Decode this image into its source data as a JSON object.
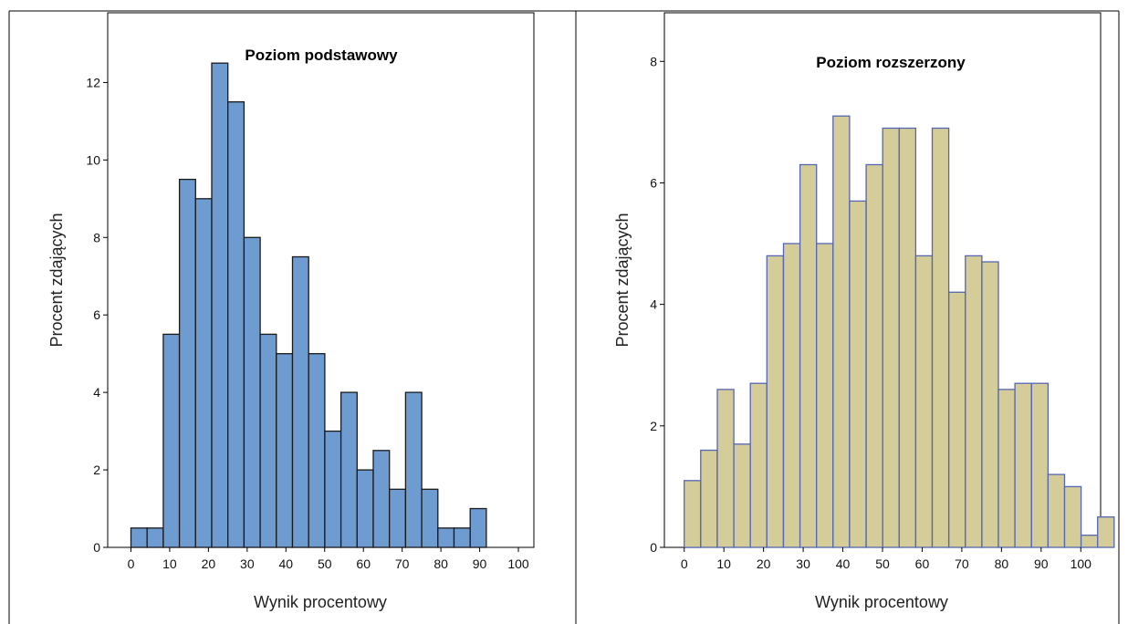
{
  "chart_data": [
    {
      "type": "bar",
      "title": "Poziom podstawowy",
      "xlabel": "Wynik procentowy",
      "ylabel": "Procent zdających",
      "bin_width": 4.17,
      "x_start": 0,
      "xlim": [
        -6,
        104
      ],
      "ylim": [
        0,
        13.8
      ],
      "xticks": [
        0,
        10,
        20,
        30,
        40,
        50,
        60,
        70,
        80,
        90,
        100
      ],
      "yticks": [
        0,
        2,
        4,
        6,
        8,
        10,
        12
      ],
      "values": [
        0.5,
        0.5,
        5.5,
        9.5,
        9.0,
        12.5,
        11.5,
        8.0,
        5.5,
        5.0,
        7.5,
        5.0,
        3.0,
        4.0,
        2.0,
        2.5,
        1.5,
        4.0,
        1.5,
        0.5,
        0.5,
        1.0
      ],
      "colors": {
        "fill": "#6e9bd0",
        "stroke": "#1a1a1a"
      },
      "grid": false,
      "legend": "none"
    },
    {
      "type": "bar",
      "title": "Poziom rozszerzony",
      "xlabel": "Wynik procentowy",
      "ylabel": "Procent zdających",
      "bin_width": 4.17,
      "x_start": 0,
      "xlim": [
        -5,
        105
      ],
      "ylim": [
        0,
        8.8
      ],
      "xticks": [
        0,
        10,
        20,
        30,
        40,
        50,
        60,
        70,
        80,
        90,
        100
      ],
      "yticks": [
        0,
        2,
        4,
        6,
        8
      ],
      "values": [
        1.1,
        1.6,
        2.6,
        1.7,
        2.7,
        4.8,
        5.0,
        6.3,
        5.0,
        7.1,
        5.7,
        6.3,
        6.9,
        6.9,
        4.8,
        6.9,
        4.2,
        4.8,
        4.7,
        2.6,
        2.7,
        2.7,
        1.2,
        1.0,
        0.2,
        0.5
      ],
      "colors": {
        "fill": "#d4cc99",
        "stroke": "#5566b3"
      },
      "grid": false,
      "legend": "none"
    }
  ]
}
